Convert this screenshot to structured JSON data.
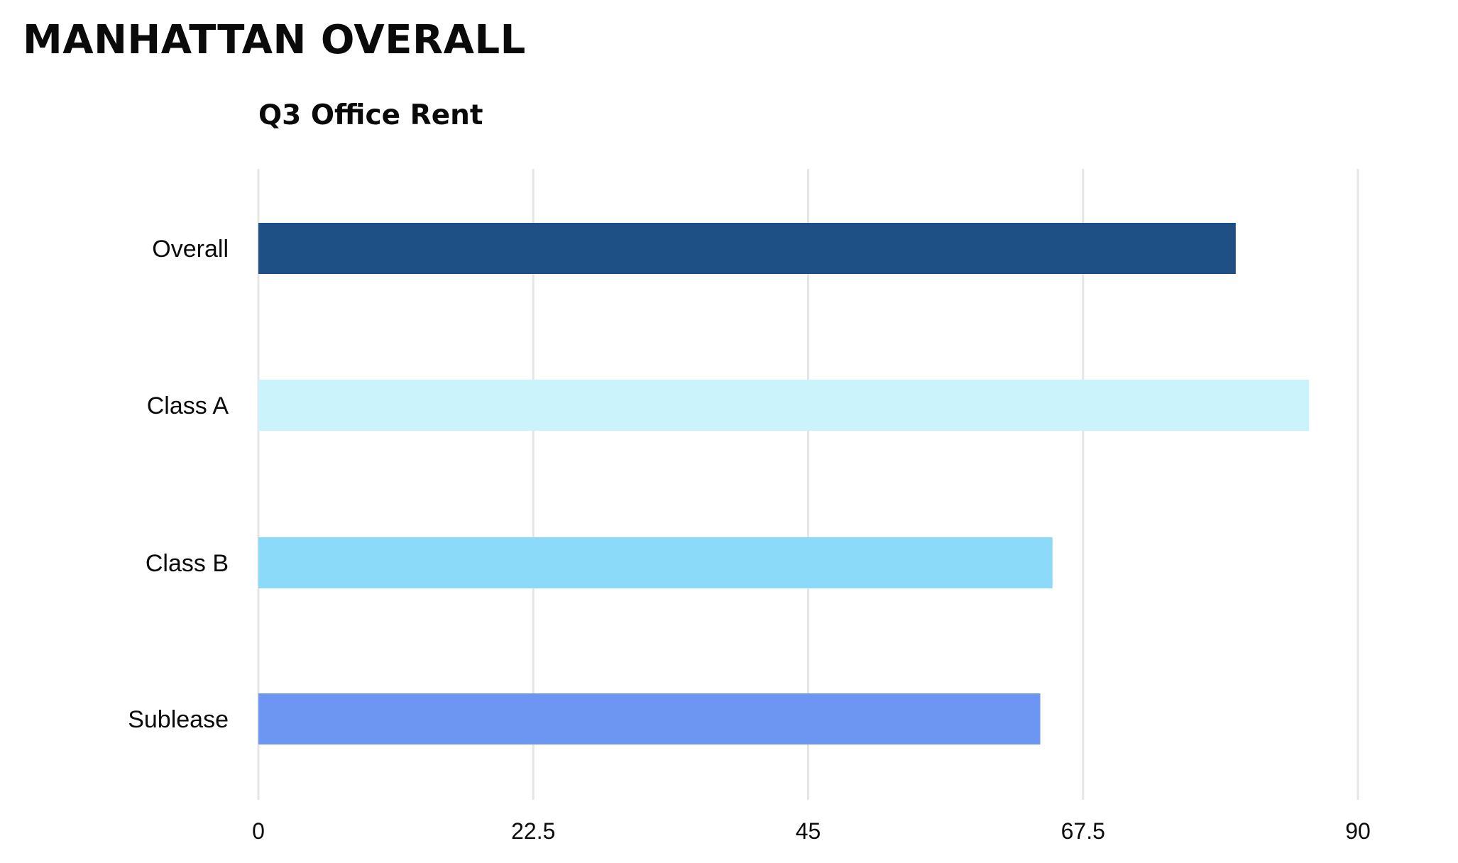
{
  "page": {
    "title": "MANHATTAN OVERALL"
  },
  "chart_data": {
    "type": "bar",
    "orientation": "horizontal",
    "title": "Q3 Office Rent",
    "xlabel": "",
    "ylabel": "",
    "categories": [
      "Overall",
      "Class A",
      "Class B",
      "Sublease"
    ],
    "values": [
      80,
      86,
      65,
      64
    ],
    "colors": [
      "#1f5085",
      "#caf3fb",
      "#8cdaf9",
      "#6d95f2"
    ],
    "xlim": [
      0,
      90
    ],
    "ticks": [
      0,
      22.5,
      45,
      67.5,
      90
    ],
    "tick_labels": [
      "0",
      "22.5",
      "45",
      "67.5",
      "90"
    ],
    "grid": true,
    "grid_color": "#e6e6e6",
    "legend": "none"
  }
}
